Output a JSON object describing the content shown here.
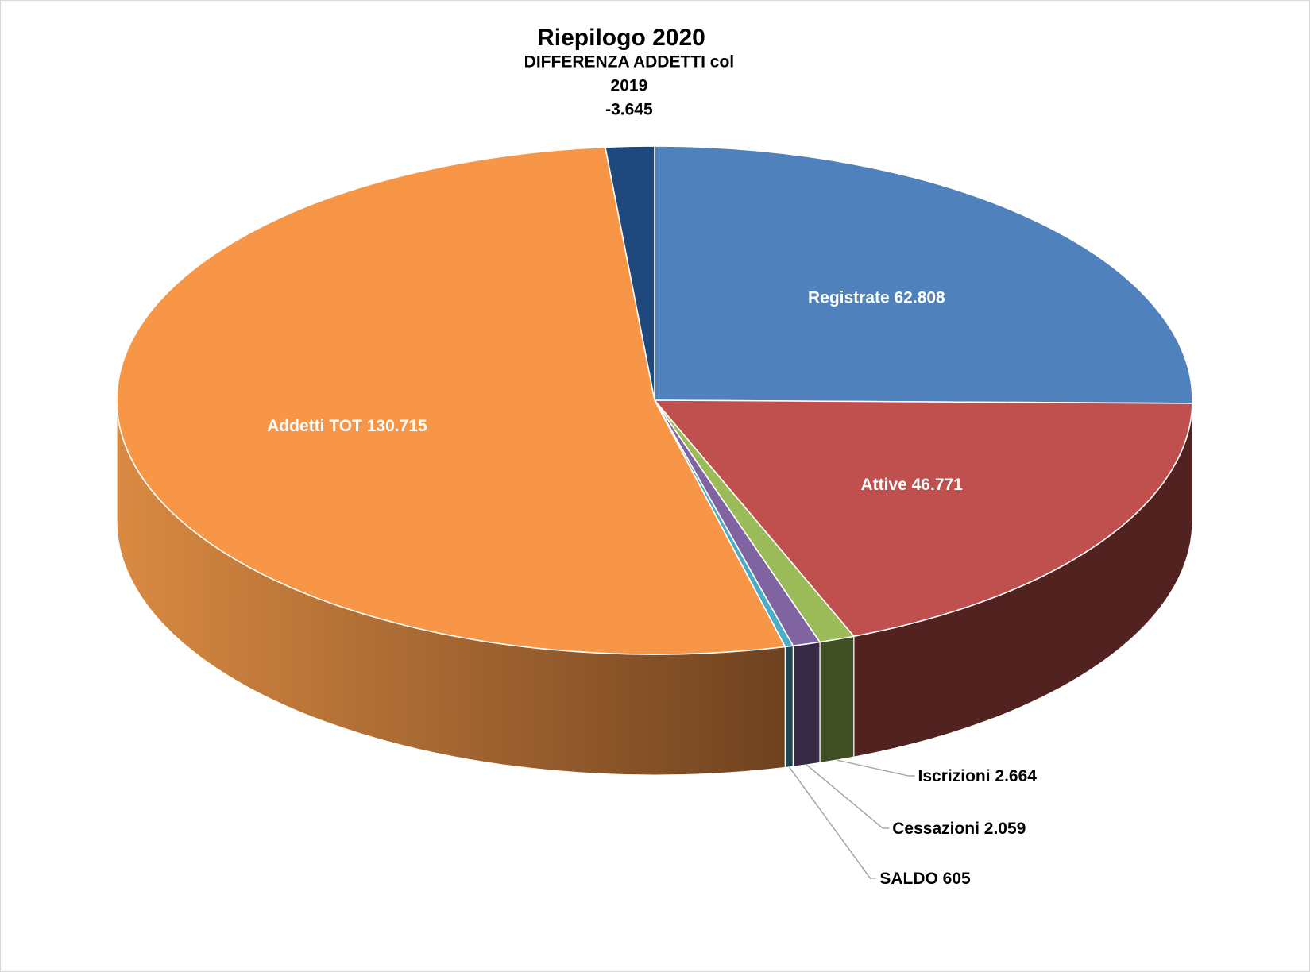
{
  "chart_data": {
    "type": "pie",
    "title": "Riepilogo 2020",
    "slices": [
      {
        "label": "Registrate",
        "display": "62.808",
        "value": 62808,
        "color": "#4F81BD"
      },
      {
        "label": "Attive",
        "display": "46.771",
        "value": 46771,
        "color": "#C0504D"
      },
      {
        "label": "Iscrizioni",
        "display": "2.664",
        "value": 2664,
        "color": "#9BBB59"
      },
      {
        "label": "Cessazioni",
        "display": "2.059",
        "value": 2059,
        "color": "#8064A2"
      },
      {
        "label": "SALDO",
        "display": "605",
        "value": 605,
        "color": "#4BACC6"
      },
      {
        "label": "Addetti TOT",
        "display": "130.715",
        "value": 130715,
        "color": "#F79646"
      },
      {
        "label": "DIFFERENZA ADDETTI col 2019",
        "display": "-3.645",
        "value": -3645,
        "color": "#1F497D"
      }
    ]
  }
}
